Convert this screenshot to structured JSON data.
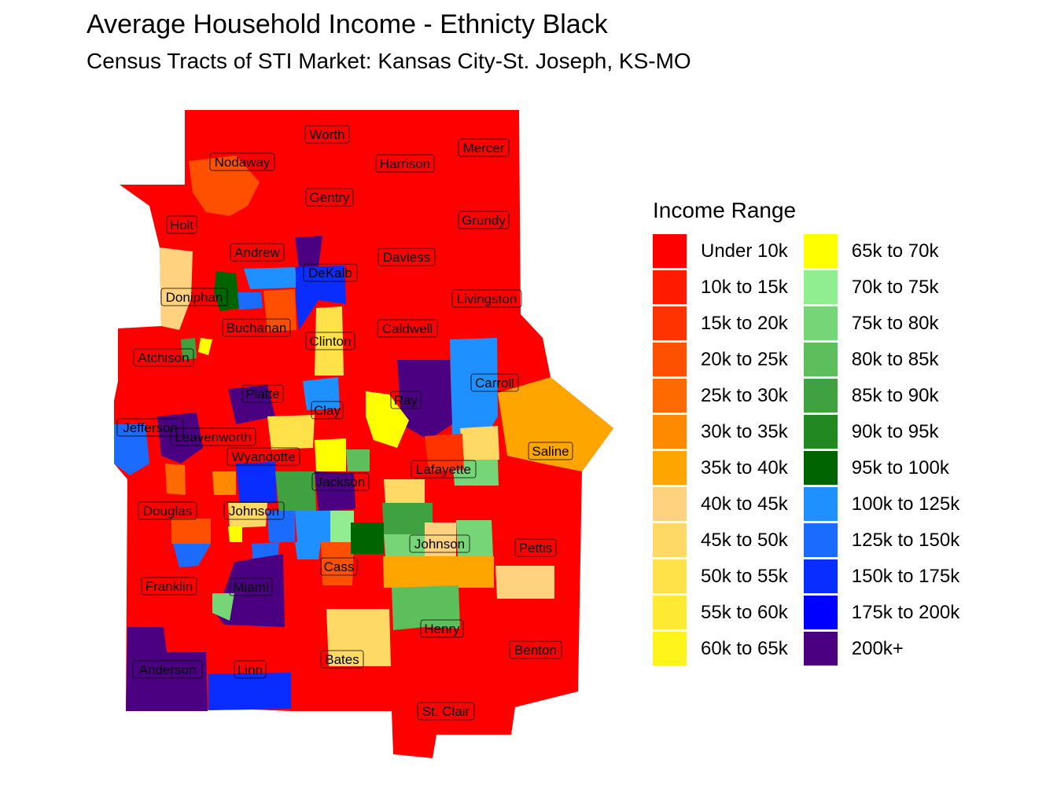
{
  "title": "Average Household Income - Ethnicty Black",
  "subtitle": "Census Tracts of STI Market: Kansas City-St. Joseph, KS-MO",
  "legend": {
    "title": "Income Range",
    "items": [
      {
        "label": "Under 10k",
        "color": "#FF0000"
      },
      {
        "label": "10k to 15k",
        "color": "#FF1A00"
      },
      {
        "label": "15k to 20k",
        "color": "#FF3300"
      },
      {
        "label": "20k to 25k",
        "color": "#FF5000"
      },
      {
        "label": "25k to 30k",
        "color": "#FF6A00"
      },
      {
        "label": "30k to 35k",
        "color": "#FF8A00"
      },
      {
        "label": "35k to 40k",
        "color": "#FFA500"
      },
      {
        "label": "40k to 45k",
        "color": "#FFD27F"
      },
      {
        "label": "45k to 50k",
        "color": "#FFD966"
      },
      {
        "label": "50k to 55k",
        "color": "#FFE24A"
      },
      {
        "label": "55k to 60k",
        "color": "#FFEA33"
      },
      {
        "label": "60k to 65k",
        "color": "#FFF51A"
      },
      {
        "label": "65k to 70k",
        "color": "#FFFF00"
      },
      {
        "label": "70k to 75k",
        "color": "#90EE90"
      },
      {
        "label": "75k to 80k",
        "color": "#76D576"
      },
      {
        "label": "80k to 85k",
        "color": "#5CBF5C"
      },
      {
        "label": "85k to 90k",
        "color": "#3FA13F"
      },
      {
        "label": "90k to 95k",
        "color": "#228822"
      },
      {
        "label": "95k to 100k",
        "color": "#006400"
      },
      {
        "label": "100k to 125k",
        "color": "#1E90FF"
      },
      {
        "label": "125k to 150k",
        "color": "#1C6BFF"
      },
      {
        "label": "150k to 175k",
        "color": "#0A2DFF"
      },
      {
        "label": "175k to 200k",
        "color": "#0000FF"
      },
      {
        "label": "200k+",
        "color": "#4B0082"
      }
    ]
  },
  "counties": [
    "Worth",
    "Mercer",
    "Nodaway",
    "Harrison",
    "Gentry",
    "Grundy",
    "Holt",
    "Andrew",
    "Daviess",
    "DeKalb",
    "Doniphan",
    "Livingston",
    "Buchanan",
    "Caldwell",
    "Clinton",
    "Atchison",
    "Carroll",
    "Platte",
    "Ray",
    "Clay",
    "Jefferson",
    "Leavenworth",
    "Saline",
    "Wyandotte",
    "Lafayette",
    "Jackson",
    "Douglas",
    "Johnson",
    "Johnson",
    "Pettis",
    "Cass",
    "Franklin",
    "Miami",
    "Henry",
    "Benton",
    "Bates",
    "Anderson",
    "Linn",
    "St. Clair"
  ]
}
